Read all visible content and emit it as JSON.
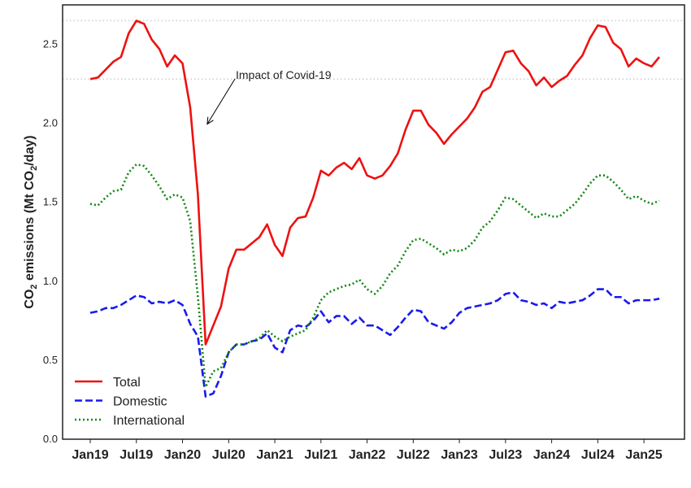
{
  "chart_data": {
    "type": "line",
    "title": "",
    "xlabel": "",
    "ylabel": {
      "prefix": "CO",
      "sub1": "2",
      "middle": " emissions (Mt CO",
      "sub2": "2",
      "suffix": "/day)"
    },
    "ylim": [
      0.0,
      2.75
    ],
    "y_ticks": [
      "0.0",
      "0.5",
      "1.0",
      "1.5",
      "2.0",
      "2.5"
    ],
    "x_tick_labels": [
      "Jan19",
      "Jul19",
      "Jan20",
      "Jul20",
      "Jan21",
      "Jul21",
      "Jan22",
      "Jul22",
      "Jan23",
      "Jul23",
      "Jan24",
      "Jul24",
      "Jan25"
    ],
    "x_start": "2019-01",
    "legend_position": "lower-left",
    "reference_lines": [
      2.65,
      2.28
    ],
    "annotation": {
      "text": "Impact of Covid-19",
      "point_x": "2020-04",
      "point_y": 2.0
    },
    "series": [
      {
        "name": "Total",
        "color": "#ee1111",
        "style": "solid",
        "values": [
          2.28,
          2.29,
          2.34,
          2.39,
          2.42,
          2.57,
          2.65,
          2.63,
          2.53,
          2.47,
          2.36,
          2.43,
          2.38,
          2.1,
          1.55,
          0.6,
          0.72,
          0.84,
          1.08,
          1.2,
          1.2,
          1.24,
          1.28,
          1.36,
          1.23,
          1.16,
          1.34,
          1.4,
          1.41,
          1.53,
          1.7,
          1.67,
          1.72,
          1.75,
          1.71,
          1.78,
          1.67,
          1.65,
          1.67,
          1.73,
          1.81,
          1.96,
          2.08,
          2.08,
          1.99,
          1.94,
          1.87,
          1.93,
          1.98,
          2.03,
          2.1,
          2.2,
          2.23,
          2.34,
          2.45,
          2.46,
          2.38,
          2.33,
          2.24,
          2.29,
          2.23,
          2.27,
          2.3,
          2.37,
          2.43,
          2.54,
          2.62,
          2.61,
          2.51,
          2.47,
          2.36,
          2.41,
          2.38,
          2.36,
          2.42
        ]
      },
      {
        "name": "Domestic",
        "color": "#1a1aee",
        "style": "dashed",
        "values": [
          0.8,
          0.81,
          0.83,
          0.83,
          0.85,
          0.88,
          0.91,
          0.9,
          0.86,
          0.87,
          0.86,
          0.88,
          0.85,
          0.73,
          0.65,
          0.27,
          0.29,
          0.4,
          0.55,
          0.6,
          0.6,
          0.62,
          0.63,
          0.67,
          0.58,
          0.55,
          0.69,
          0.72,
          0.71,
          0.75,
          0.81,
          0.74,
          0.78,
          0.78,
          0.73,
          0.77,
          0.72,
          0.72,
          0.69,
          0.66,
          0.71,
          0.77,
          0.82,
          0.81,
          0.74,
          0.72,
          0.7,
          0.74,
          0.8,
          0.83,
          0.84,
          0.85,
          0.86,
          0.88,
          0.92,
          0.93,
          0.88,
          0.87,
          0.85,
          0.86,
          0.83,
          0.87,
          0.86,
          0.87,
          0.88,
          0.91,
          0.95,
          0.95,
          0.9,
          0.9,
          0.86,
          0.88,
          0.88,
          0.88,
          0.89
        ]
      },
      {
        "name": "International",
        "color": "#118811",
        "style": "dotted",
        "values": [
          1.49,
          1.48,
          1.53,
          1.57,
          1.58,
          1.69,
          1.74,
          1.73,
          1.67,
          1.6,
          1.52,
          1.55,
          1.53,
          1.38,
          0.9,
          0.33,
          0.43,
          0.45,
          0.55,
          0.6,
          0.6,
          0.62,
          0.64,
          0.69,
          0.65,
          0.62,
          0.65,
          0.67,
          0.69,
          0.77,
          0.88,
          0.93,
          0.95,
          0.97,
          0.98,
          1.01,
          0.95,
          0.92,
          0.97,
          1.05,
          1.1,
          1.19,
          1.26,
          1.27,
          1.24,
          1.21,
          1.17,
          1.2,
          1.19,
          1.21,
          1.26,
          1.34,
          1.38,
          1.45,
          1.53,
          1.52,
          1.48,
          1.44,
          1.4,
          1.43,
          1.41,
          1.41,
          1.45,
          1.49,
          1.55,
          1.62,
          1.67,
          1.67,
          1.63,
          1.58,
          1.52,
          1.54,
          1.51,
          1.49,
          1.51
        ]
      }
    ]
  }
}
